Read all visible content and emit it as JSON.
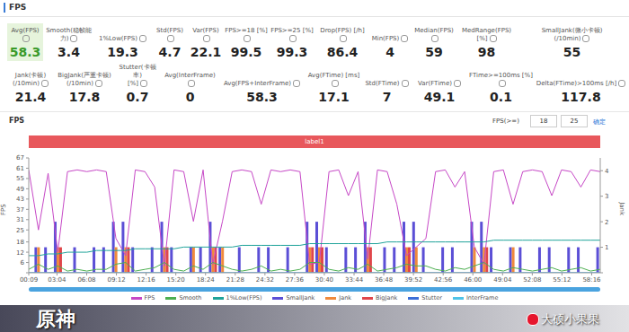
{
  "header": {
    "title": "FPS"
  },
  "stats": [
    [
      {
        "label": "Avg(FPS)",
        "value": 58.3
      },
      {
        "label": "Smooth(稳帧能力)",
        "value": 3.4
      },
      {
        "label": "1%Low(FPS)",
        "value": 19.3
      },
      {
        "label": "Std(FPS)",
        "value": 4.7
      },
      {
        "label": "Var(FPS)",
        "value": 22.1
      },
      {
        "label": "FPS>=18 [%]",
        "value": 99.5
      },
      {
        "label": "FPS>=25 [%]",
        "value": 99.3
      },
      {
        "label": "Drop(FPS) [/h]",
        "value": 86.4
      },
      {
        "label": "Min(FPS)",
        "value": 4
      },
      {
        "label": "Median(FPS)",
        "value": 59
      },
      {
        "label": "MedRange(FPS)[%]",
        "value": 98
      },
      {
        "label": "SmallJank(微小卡顿)\n(/10min)",
        "value": 55
      }
    ],
    [
      {
        "label": "Jank(卡顿)\n(/10min)",
        "value": 21.4
      },
      {
        "label": "BigJank(严重卡顿)\n(/10min)",
        "value": 17.8
      },
      {
        "label": "Stutter(卡顿率)\n[%]",
        "value": 0.7
      },
      {
        "label": "Avg(InterFrame)",
        "value": 0
      },
      {
        "label": "Avg(FPS+InterFrame)",
        "value": 58.3
      },
      {
        "label": "Avg(FTime) [ms]",
        "value": 17.1
      },
      {
        "label": "Std(FTime)",
        "value": 7
      },
      {
        "label": "Var(FTime)",
        "value": 49.1
      },
      {
        "label": "FTime>=100ms [%]",
        "value": 0.1
      },
      {
        "label": "Delta(FTime)>100ms [/h]",
        "value": 117.8
      }
    ]
  ],
  "filter": {
    "label": "FPS(>=)",
    "values": [
      18,
      25
    ],
    "button": "确定"
  },
  "band_label": "label1",
  "caption": "原神",
  "watermark": "大硕小果果",
  "chart_data": {
    "type": "line",
    "title": "FPS",
    "y_label": "FPS",
    "y2_label": "Jank",
    "grid": false,
    "x": [
      9,
      69,
      129,
      189,
      249,
      309,
      369,
      429,
      489,
      549,
      609,
      669,
      729,
      789,
      849,
      909,
      969,
      1029,
      1089,
      1149,
      1209,
      1269,
      1329,
      1389,
      1449,
      1509,
      1569,
      1629,
      1689,
      1749,
      1809,
      1869,
      1929,
      1989,
      2049,
      2109,
      2169,
      2229,
      2289,
      2349,
      2409,
      2469,
      2529,
      2589,
      2649,
      2709,
      2769,
      2829,
      2889,
      2949,
      3009,
      3069,
      3129,
      3189,
      3249,
      3309,
      3369,
      3429,
      3489,
      3549
    ],
    "xlim": [
      9,
      3549
    ],
    "xticks": [
      {
        "value": 9,
        "label": "00:09"
      },
      {
        "value": 184,
        "label": "03:04"
      },
      {
        "value": 368,
        "label": "06:08"
      },
      {
        "value": 552,
        "label": "09:12"
      },
      {
        "value": 736,
        "label": "12:16"
      },
      {
        "value": 920,
        "label": "15:20"
      },
      {
        "value": 1104,
        "label": "18:24"
      },
      {
        "value": 1288,
        "label": "21:28"
      },
      {
        "value": 1472,
        "label": "24:32"
      },
      {
        "value": 1656,
        "label": "27:36"
      },
      {
        "value": 1840,
        "label": "30:40"
      },
      {
        "value": 2024,
        "label": "33:44"
      },
      {
        "value": 2208,
        "label": "36:48"
      },
      {
        "value": 2392,
        "label": "39:52"
      },
      {
        "value": 2576,
        "label": "42:56"
      },
      {
        "value": 2760,
        "label": "46:00"
      },
      {
        "value": 2944,
        "label": "49:04"
      },
      {
        "value": 3128,
        "label": "52:08"
      },
      {
        "value": 3312,
        "label": "55:12"
      },
      {
        "value": 3496,
        "label": "58:16"
      }
    ],
    "ylim": [
      0,
      67
    ],
    "yticks": [
      0,
      6,
      12,
      18,
      25,
      31,
      37,
      43,
      49,
      55,
      61,
      67
    ],
    "y2lim": [
      0,
      4.5
    ],
    "y2ticks": [
      0,
      1,
      2,
      3,
      4
    ],
    "series": [
      {
        "name": "FPS",
        "type": "line",
        "color": "#c648c6",
        "values": [
          60,
          25,
          58,
          12,
          59,
          60,
          59,
          60,
          59,
          20,
          10,
          60,
          59,
          50,
          4,
          60,
          59,
          30,
          60,
          5,
          30,
          59,
          60,
          59,
          40,
          60,
          59,
          60,
          59,
          5,
          6,
          59,
          60,
          45,
          59,
          8,
          60,
          59,
          40,
          10,
          15,
          20,
          59,
          60,
          50,
          59,
          15,
          5,
          59,
          60,
          40,
          59,
          60,
          59,
          45,
          60,
          59,
          50,
          60,
          59
        ]
      },
      {
        "name": "Smooth",
        "type": "line",
        "color": "#4caf50",
        "values": [
          2,
          5,
          2,
          4,
          1,
          2,
          1,
          2,
          2,
          5,
          6,
          1,
          2,
          3,
          6,
          2,
          1,
          4,
          2,
          6,
          4,
          2,
          1,
          2,
          4,
          1,
          2,
          1,
          2,
          6,
          6,
          2,
          1,
          3,
          2,
          5,
          1,
          2,
          3,
          5,
          4,
          4,
          2,
          1,
          3,
          2,
          4,
          6,
          2,
          1,
          3,
          2,
          1,
          2,
          3,
          1,
          2,
          3,
          1,
          2
        ]
      },
      {
        "name": "1%Low(FPS)",
        "type": "line",
        "color": "#1fa39a",
        "values": [
          10,
          10,
          11,
          11,
          12,
          12,
          12,
          13,
          13,
          13,
          13,
          14,
          14,
          14,
          14,
          14,
          15,
          15,
          15,
          15,
          15,
          15,
          16,
          16,
          16,
          16,
          16,
          16,
          16,
          17,
          17,
          17,
          17,
          17,
          17,
          17,
          17,
          18,
          18,
          18,
          18,
          18,
          18,
          18,
          18,
          18,
          18,
          18,
          19,
          19,
          19,
          19,
          19,
          19,
          19,
          19,
          19,
          19,
          19,
          19
        ]
      },
      {
        "name": "SmallJank",
        "type": "bar",
        "axis": "y2",
        "color": "#5b4fd6",
        "values": [
          0,
          1,
          1,
          2,
          0,
          1,
          0,
          1,
          1,
          2,
          2,
          1,
          0,
          1,
          2,
          1,
          0,
          1,
          1,
          2,
          1,
          0,
          1,
          0,
          1,
          1,
          0,
          1,
          0,
          2,
          2,
          1,
          0,
          1,
          1,
          2,
          0,
          1,
          1,
          2,
          2,
          1,
          0,
          1,
          1,
          0,
          2,
          2,
          1,
          0,
          1,
          1,
          0,
          1,
          1,
          0,
          1,
          1,
          0,
          1
        ]
      },
      {
        "name": "Jank",
        "type": "bar",
        "axis": "y2",
        "color": "#f08a3c",
        "values": [
          0,
          1,
          0,
          1,
          0,
          0,
          0,
          0,
          0,
          1,
          1,
          0,
          0,
          0,
          1,
          0,
          0,
          1,
          0,
          1,
          1,
          0,
          0,
          0,
          0,
          0,
          0,
          0,
          0,
          1,
          1,
          0,
          0,
          0,
          0,
          1,
          0,
          0,
          0,
          1,
          1,
          0,
          0,
          0,
          0,
          0,
          1,
          1,
          0,
          0,
          1,
          0,
          0,
          0,
          0,
          0,
          0,
          0,
          0,
          0
        ]
      },
      {
        "name": "BigJank",
        "type": "bar",
        "axis": "y2",
        "color": "#e0464a",
        "values": [
          0,
          0,
          0,
          1,
          0,
          0,
          0,
          0,
          0,
          0,
          1,
          0,
          0,
          0,
          1,
          0,
          0,
          0,
          0,
          1,
          0,
          0,
          0,
          0,
          0,
          0,
          0,
          0,
          0,
          1,
          1,
          0,
          0,
          0,
          0,
          1,
          0,
          0,
          0,
          1,
          0,
          0,
          0,
          0,
          0,
          0,
          0,
          1,
          0,
          0,
          0,
          0,
          0,
          0,
          0,
          0,
          0,
          0,
          0,
          0
        ]
      },
      {
        "name": "Stutter",
        "type": "line",
        "axis": "y2",
        "color": "#3c6fd8",
        "values": [
          0,
          0,
          0,
          0,
          0,
          0,
          0,
          0,
          0,
          0,
          0,
          0,
          0,
          0,
          0,
          0,
          0,
          0,
          0,
          0,
          0,
          0,
          0,
          0,
          0,
          0,
          0,
          0,
          0,
          0,
          0,
          0,
          0,
          0,
          0,
          0,
          0,
          0,
          0,
          0,
          0,
          0,
          0,
          0,
          0,
          0,
          0,
          0,
          0,
          0,
          0,
          0,
          0,
          0,
          0,
          0,
          0,
          0,
          0,
          0
        ]
      },
      {
        "name": "InterFrame",
        "type": "line",
        "color": "#4fc3e8",
        "values": [
          0,
          0,
          0,
          0,
          0,
          0,
          0,
          0,
          0,
          0,
          0,
          0,
          0,
          0,
          0,
          0,
          0,
          0,
          0,
          0,
          0,
          0,
          0,
          0,
          0,
          0,
          0,
          0,
          0,
          0,
          0,
          0,
          0,
          0,
          0,
          0,
          0,
          0,
          0,
          0,
          0,
          0,
          0,
          0,
          0,
          0,
          0,
          0,
          0,
          0,
          0,
          0,
          0,
          0,
          0,
          0,
          0,
          0,
          0,
          0
        ]
      }
    ]
  }
}
